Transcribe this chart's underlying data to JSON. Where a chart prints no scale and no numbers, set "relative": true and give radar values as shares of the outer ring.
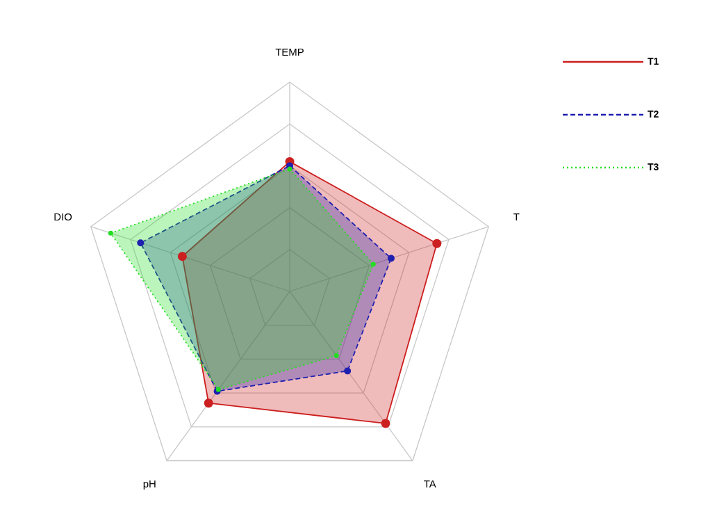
{
  "chart_data": {
    "type": "radar",
    "relative": true,
    "categories": [
      "TEMP",
      "T",
      "TA",
      "pH",
      "DIO"
    ],
    "series": [
      {
        "name": "T1",
        "color": "#cc1f1f",
        "line_style": "solid",
        "values": [
          0.62,
          0.74,
          0.78,
          0.66,
          0.54
        ]
      },
      {
        "name": "T2",
        "color": "#1f1fb0",
        "line_style": "dashed",
        "values": [
          0.6,
          0.51,
          0.47,
          0.59,
          0.75
        ]
      },
      {
        "name": "T3",
        "color": "#22dd22",
        "line_style": "dotted",
        "values": [
          0.585,
          0.42,
          0.38,
          0.58,
          0.9
        ]
      }
    ],
    "grid": true,
    "legend": "top right",
    "marker": "circle"
  }
}
